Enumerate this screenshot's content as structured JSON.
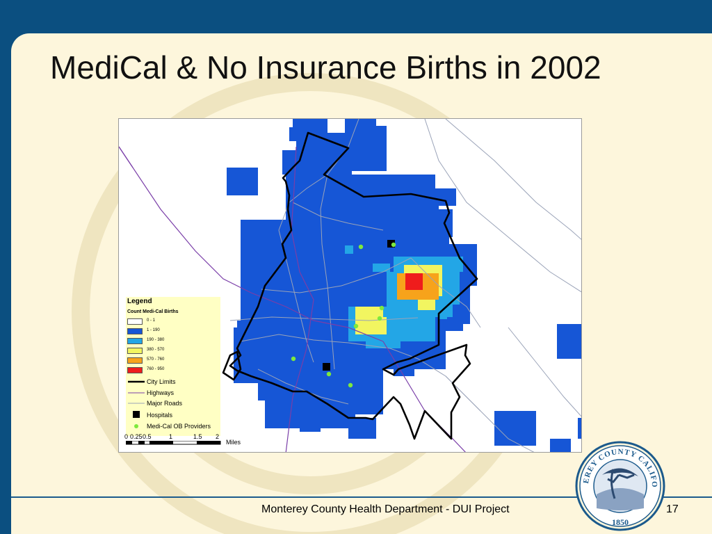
{
  "slide": {
    "title": "MediCal & No Insurance Births in 2002",
    "footer": "Monterey County Health Department - DUI Project",
    "page_number": "17"
  },
  "colors": {
    "background_blue": "#0b4f80",
    "panel": "#fdf6dc",
    "density_low": "#1656d6",
    "density_2": "#23a6e6",
    "density_3": "#f2f560",
    "density_4": "#f7a31b",
    "density_5": "#ef1c1c",
    "provider_dot": "#7ee93c"
  },
  "legend": {
    "title": "Legend",
    "subtitle": "Count Medi-Cal Births",
    "classes": [
      {
        "label": "0 - 1",
        "color": "#ffffff"
      },
      {
        "label": "1 - 190",
        "color": "#1656d6"
      },
      {
        "label": "190 - 380",
        "color": "#23a6e6"
      },
      {
        "label": "380 - 570",
        "color": "#f2f560"
      },
      {
        "label": "570 - 760",
        "color": "#f7a31b"
      },
      {
        "label": "760 - 950",
        "color": "#ef1c1c"
      }
    ],
    "symbols": [
      {
        "label": "City Limits",
        "icon": "thick-black-line"
      },
      {
        "label": "Highways",
        "icon": "thin-purple-line"
      },
      {
        "label": "Major Roads",
        "icon": "thin-grey-line"
      },
      {
        "label": "Hospitals",
        "icon": "black-square"
      },
      {
        "label": "Medi-Cal OB Providers",
        "icon": "green-dot"
      }
    ]
  },
  "scalebar": {
    "ticks": [
      "0",
      "0.25",
      "0.5",
      "1",
      "1.5",
      "2"
    ],
    "units": "Miles"
  },
  "seal": {
    "text_top": "MONTEREY COUNTY CALIFORNIA",
    "year": "1850"
  }
}
